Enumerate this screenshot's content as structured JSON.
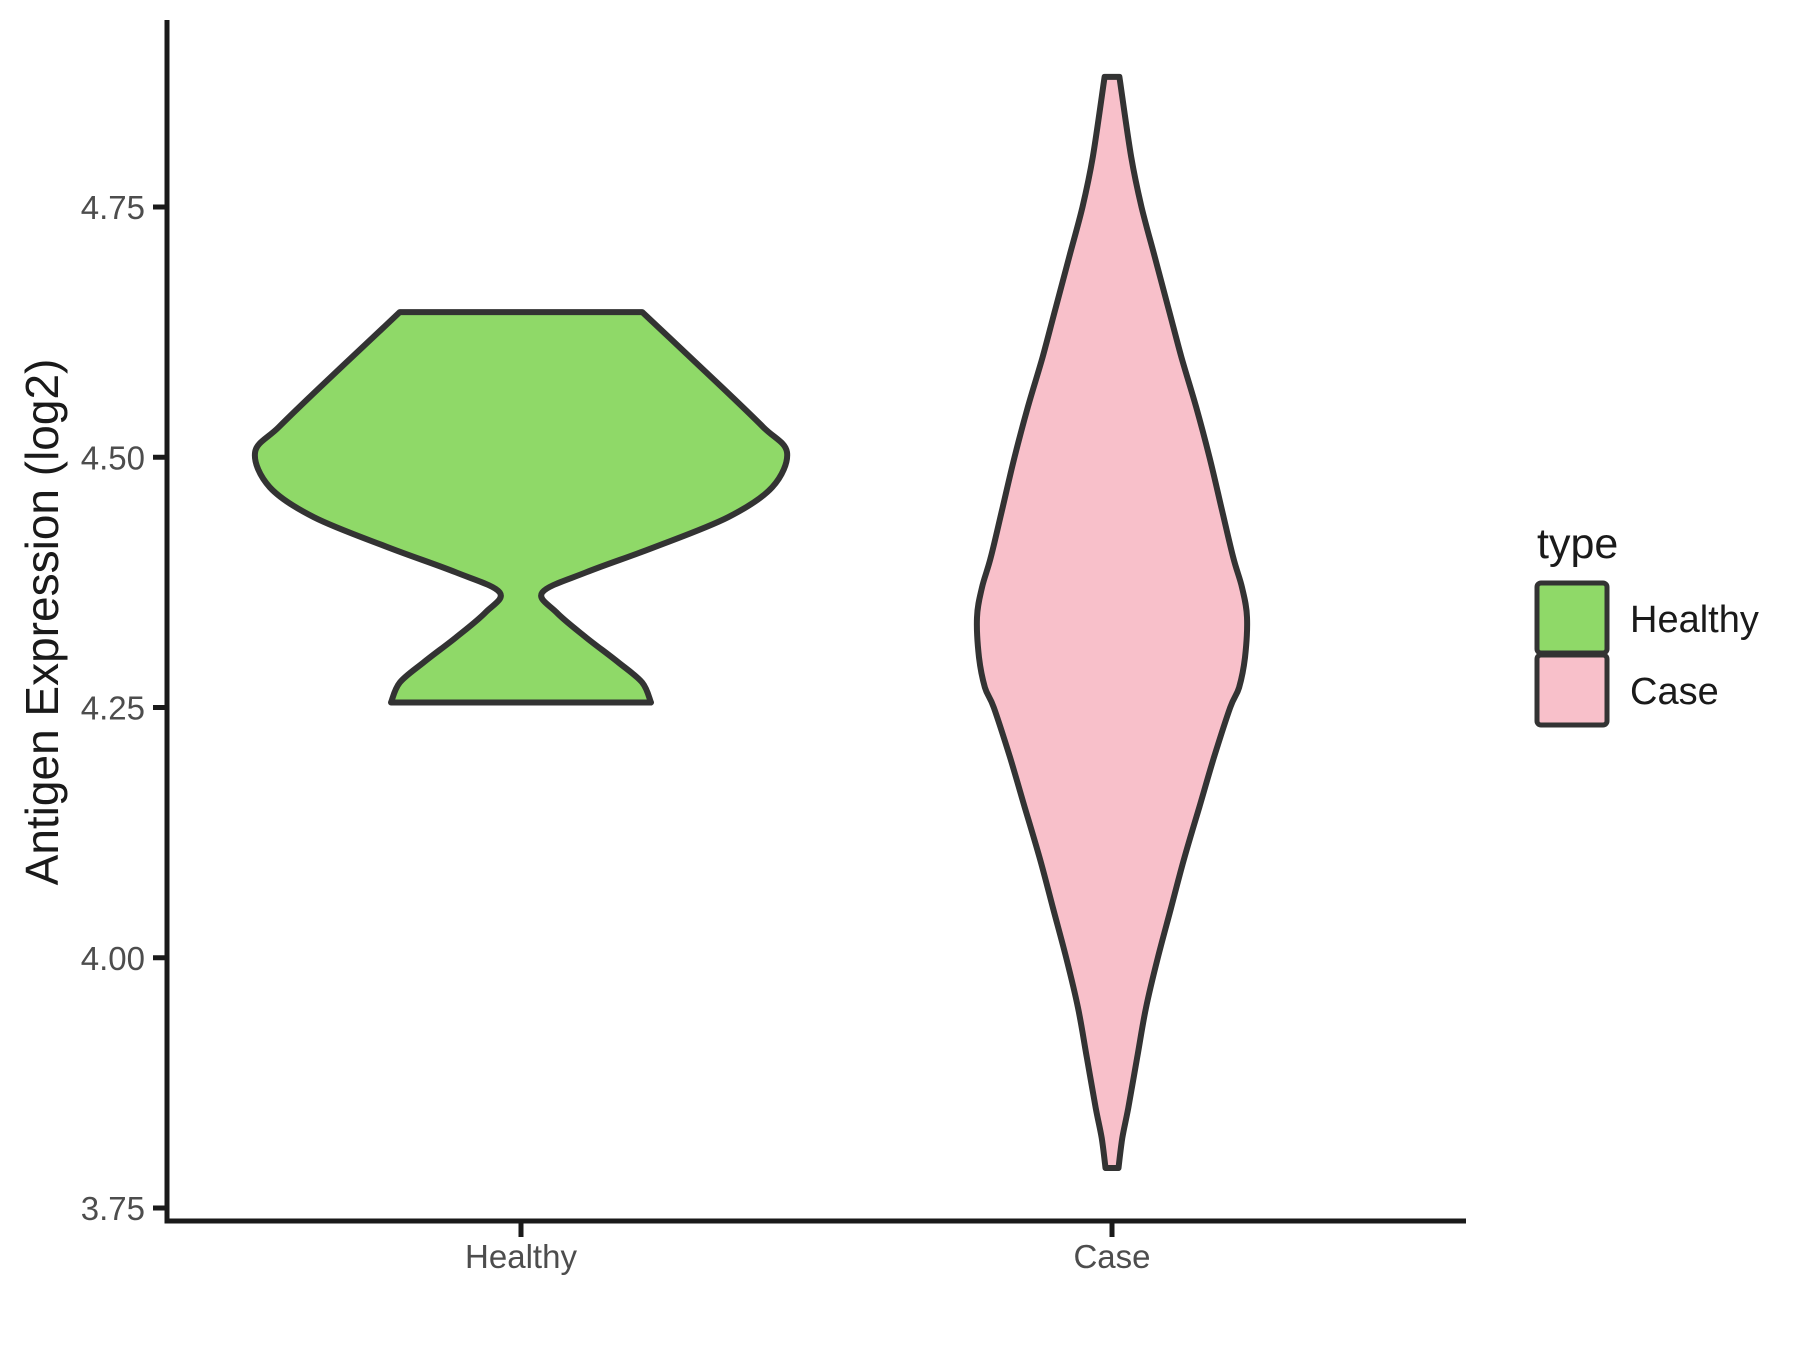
{
  "figure": {
    "y_axis_title": "Antigen Expression (log2)",
    "y_tick_labels": [
      "4.75",
      "4.50",
      "4.25",
      "4.00",
      "3.75"
    ],
    "x_tick_labels": [
      "Healthy",
      "Case"
    ],
    "legend": {
      "title": "type",
      "items": [
        {
          "label": "Healthy",
          "color": "#8FD968"
        },
        {
          "label": "Case",
          "color": "#F8C0CA"
        }
      ]
    }
  },
  "chart_data": {
    "type": "violin",
    "title": "",
    "xlabel": "",
    "ylabel": "Antigen Expression (log2)",
    "categories": [
      "Healthy",
      "Case"
    ],
    "ylim": [
      3.7,
      4.92
    ],
    "y_tick_values": [
      4.75,
      4.5,
      4.25,
      4.0,
      3.75
    ],
    "grid": false,
    "legend_title": "type",
    "legend_position": "right",
    "series": [
      {
        "name": "Healthy",
        "fill": "#8FD968",
        "outline": "#333333",
        "data_range": [
          4.26,
          4.64
        ],
        "max_width_category_units": 0.9,
        "profile": [
          [
            4.645,
            0.41
          ],
          [
            4.62,
            0.5
          ],
          [
            4.57,
            0.68
          ],
          [
            4.53,
            0.82
          ],
          [
            4.505,
            0.9
          ],
          [
            4.47,
            0.85
          ],
          [
            4.44,
            0.7
          ],
          [
            4.41,
            0.45
          ],
          [
            4.385,
            0.22
          ],
          [
            4.365,
            0.072
          ],
          [
            4.345,
            0.12
          ],
          [
            4.32,
            0.22
          ],
          [
            4.295,
            0.33
          ],
          [
            4.275,
            0.41
          ],
          [
            4.255,
            0.44
          ]
        ]
      },
      {
        "name": "Case",
        "fill": "#F8C0CA",
        "outline": "#333333",
        "data_range": [
          3.79,
          4.88
        ],
        "max_width_category_units": 0.46,
        "profile": [
          [
            4.88,
            0.025
          ],
          [
            4.8,
            0.065
          ],
          [
            4.75,
            0.1
          ],
          [
            4.7,
            0.145
          ],
          [
            4.65,
            0.19
          ],
          [
            4.6,
            0.235
          ],
          [
            4.55,
            0.285
          ],
          [
            4.5,
            0.33
          ],
          [
            4.45,
            0.37
          ],
          [
            4.4,
            0.41
          ],
          [
            4.37,
            0.44
          ],
          [
            4.34,
            0.457
          ],
          [
            4.3,
            0.45
          ],
          [
            4.27,
            0.43
          ],
          [
            4.25,
            0.4
          ],
          [
            4.2,
            0.345
          ],
          [
            4.15,
            0.295
          ],
          [
            4.1,
            0.245
          ],
          [
            4.05,
            0.2
          ],
          [
            4.0,
            0.155
          ],
          [
            3.95,
            0.115
          ],
          [
            3.9,
            0.085
          ],
          [
            3.85,
            0.055
          ],
          [
            3.82,
            0.035
          ],
          [
            3.79,
            0.022
          ]
        ]
      }
    ]
  }
}
